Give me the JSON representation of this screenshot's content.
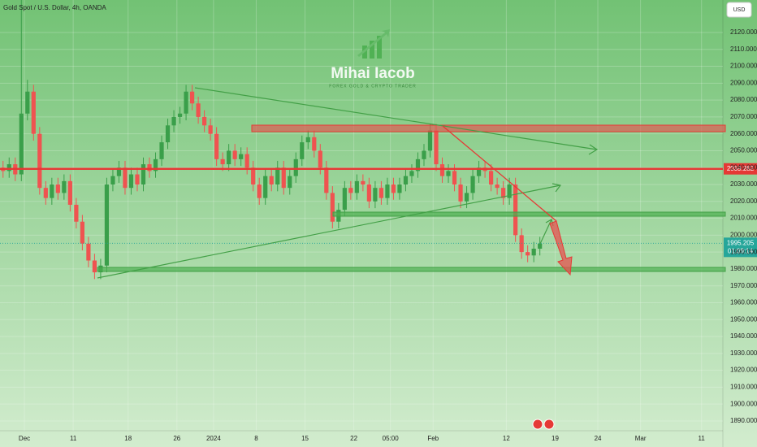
{
  "chart_data": {
    "type": "candlestick",
    "title": "Gold Spot / U.S. Dollar, 4h, OANDA",
    "currency": "USD",
    "watermark": {
      "name": "Mihai Iacob",
      "tagline": "FOREX GOLD & CRYPTO TRADER"
    },
    "up_color": "#3a9f4a",
    "down_color": "#ef5350",
    "grid": true,
    "open": [
      2040,
      2038,
      2042,
      2036,
      2072,
      2085,
      2060,
      2028,
      2022,
      2030,
      2025,
      2032,
      2018,
      2008,
      1995,
      1985,
      1978,
      1982,
      2030,
      2035,
      2040,
      2028,
      2036,
      2030,
      2042,
      2038,
      2045,
      2055,
      2065,
      2070,
      2072,
      2085,
      2078,
      2070,
      2065,
      2060,
      2045,
      2042,
      2050,
      2045,
      2048,
      2040,
      2030,
      2022,
      2035,
      2030,
      2040,
      2028,
      2035,
      2045,
      2055,
      2058,
      2050,
      2040,
      2025,
      2008,
      2015,
      2028,
      2025,
      2032,
      2030,
      2020,
      2028,
      2022,
      2030,
      2025,
      2030,
      2035,
      2038,
      2045,
      2050,
      2062,
      2042,
      2035,
      2038,
      2030,
      2020,
      2025,
      2035,
      2040,
      2038,
      2030,
      2028,
      2022,
      2030,
      2000,
      1990,
      1988,
      1992
    ],
    "high": [
      2044,
      2046,
      2046,
      2142,
      2092,
      2089,
      2064,
      2032,
      2034,
      2034,
      2036,
      2036,
      2022,
      2012,
      1999,
      1989,
      1986,
      2034,
      2039,
      2044,
      2044,
      2040,
      2040,
      2046,
      2046,
      2049,
      2059,
      2069,
      2074,
      2076,
      2089,
      2089,
      2082,
      2074,
      2069,
      2064,
      2049,
      2054,
      2054,
      2052,
      2052,
      2044,
      2034,
      2039,
      2039,
      2044,
      2044,
      2039,
      2049,
      2059,
      2062,
      2062,
      2054,
      2044,
      2029,
      2019,
      2032,
      2032,
      2036,
      2036,
      2034,
      2032,
      2032,
      2034,
      2034,
      2034,
      2039,
      2042,
      2049,
      2054,
      2066,
      2066,
      2046,
      2042,
      2042,
      2034,
      2029,
      2039,
      2044,
      2044,
      2042,
      2034,
      2032,
      2034,
      2034,
      2004,
      1994,
      1996,
      1999
    ],
    "low": [
      2034,
      2034,
      2032,
      2032,
      2068,
      2056,
      2024,
      2018,
      2018,
      2021,
      2021,
      2014,
      2004,
      1991,
      1981,
      1974,
      1974,
      1978,
      2026,
      2031,
      2024,
      2024,
      2026,
      2026,
      2034,
      2034,
      2041,
      2051,
      2061,
      2066,
      2068,
      2074,
      2066,
      2061,
      2056,
      2041,
      2038,
      2038,
      2041,
      2041,
      2036,
      2026,
      2018,
      2018,
      2026,
      2026,
      2024,
      2024,
      2031,
      2041,
      2051,
      2046,
      2036,
      2021,
      2004,
      2004,
      2011,
      2021,
      2021,
      2026,
      2016,
      2016,
      2018,
      2018,
      2021,
      2021,
      2026,
      2031,
      2034,
      2041,
      2046,
      2038,
      2031,
      2031,
      2026,
      2016,
      2016,
      2021,
      2031,
      2034,
      2026,
      2024,
      2018,
      2018,
      1996,
      1986,
      1984,
      1984,
      1988
    ],
    "close": [
      2038,
      2042,
      2036,
      2072,
      2085,
      2060,
      2028,
      2022,
      2030,
      2025,
      2032,
      2018,
      2008,
      1995,
      1985,
      1978,
      1982,
      2030,
      2035,
      2040,
      2028,
      2036,
      2030,
      2042,
      2038,
      2045,
      2055,
      2065,
      2070,
      2072,
      2085,
      2078,
      2070,
      2065,
      2060,
      2045,
      2042,
      2050,
      2045,
      2048,
      2040,
      2030,
      2022,
      2035,
      2030,
      2040,
      2028,
      2035,
      2045,
      2055,
      2058,
      2050,
      2040,
      2025,
      2008,
      2015,
      2028,
      2025,
      2032,
      2030,
      2020,
      2028,
      2022,
      2030,
      2025,
      2030,
      2035,
      2038,
      2045,
      2050,
      2062,
      2042,
      2035,
      2038,
      2030,
      2020,
      2025,
      2035,
      2040,
      2038,
      2030,
      2028,
      2022,
      2030,
      2000,
      1990,
      1988,
      1992,
      1995
    ],
    "xlim": [
      0,
      118.5
    ],
    "xticks": [
      {
        "value": 4,
        "label": "Dec"
      },
      {
        "value": 12,
        "label": "11"
      },
      {
        "value": 21,
        "label": "18"
      },
      {
        "value": 29,
        "label": "26"
      },
      {
        "value": 35,
        "label": "2024"
      },
      {
        "value": 42,
        "label": "8"
      },
      {
        "value": 50,
        "label": "15"
      },
      {
        "value": 58,
        "label": "22"
      },
      {
        "value": 64,
        "label": "05:00"
      },
      {
        "value": 71,
        "label": "Feb"
      },
      {
        "value": 83,
        "label": "12"
      },
      {
        "value": 91,
        "label": "19"
      },
      {
        "value": 98,
        "label": "24"
      },
      {
        "value": 105,
        "label": "Mar"
      },
      {
        "value": 115,
        "label": "11"
      }
    ],
    "ylim": [
      1884.2,
      2139.25
    ],
    "yticks": [
      {
        "value": 1890,
        "label": "1890.000"
      },
      {
        "value": 1900,
        "label": "1900.000"
      },
      {
        "value": 1910,
        "label": "1910.000"
      },
      {
        "value": 1920,
        "label": "1920.000"
      },
      {
        "value": 1930,
        "label": "1930.000"
      },
      {
        "value": 1940,
        "label": "1940.000"
      },
      {
        "value": 1950,
        "label": "1950.000"
      },
      {
        "value": 1960,
        "label": "1960.000"
      },
      {
        "value": 1970,
        "label": "1970.000"
      },
      {
        "value": 1980,
        "label": "1980.000"
      },
      {
        "value": 1990,
        "label": "1990.000"
      },
      {
        "value": 2000,
        "label": "2000.000"
      },
      {
        "value": 2010,
        "label": "2010.000"
      },
      {
        "value": 2020,
        "label": "2020.000"
      },
      {
        "value": 2030,
        "label": "2030.000"
      },
      {
        "value": 2040,
        "label": "2040.000"
      },
      {
        "value": 2050,
        "label": "2050.000"
      },
      {
        "value": 2060,
        "label": "2060.000"
      },
      {
        "value": 2070,
        "label": "2070.000"
      },
      {
        "value": 2080,
        "label": "2080.000"
      },
      {
        "value": 2090,
        "label": "2090.000"
      },
      {
        "value": 2100,
        "label": "2100.000"
      },
      {
        "value": 2110,
        "label": "2110.000"
      },
      {
        "value": 2120,
        "label": "2120.000"
      }
    ],
    "horizontal_line": {
      "value": 2039.282,
      "label": "2039.282",
      "color": "#e53935"
    },
    "last_price": {
      "value": 1995.205,
      "label": "1995.205",
      "color": "#26a69a"
    },
    "countdown": "01:09:14"
  }
}
